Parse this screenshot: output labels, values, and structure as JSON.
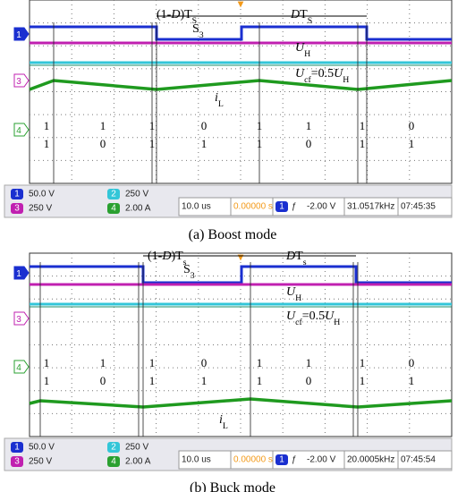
{
  "panels": [
    {
      "caption": "(a) Boost mode",
      "annotations": {
        "period_off": [
          "(1-",
          "D",
          ")T",
          "S"
        ],
        "switch": [
          "S",
          "3"
        ],
        "period_on": [
          "D",
          "T",
          "S"
        ],
        "voltage_high": [
          "U",
          "H"
        ],
        "capacitor_voltage": [
          "U",
          "cf",
          "=0.5",
          "U",
          "H"
        ],
        "inductor_current": [
          "i",
          "L"
        ]
      },
      "channel_markers": [
        "1",
        "3",
        "4"
      ],
      "digits_row1": [
        "1",
        "1",
        "1",
        "0",
        "1",
        "1",
        "1",
        "0"
      ],
      "digits_row2": [
        "1",
        "0",
        "1",
        "1",
        "1",
        "0",
        "1",
        "1"
      ],
      "status": {
        "channels": [
          {
            "ch": "1",
            "value": "50.0 V"
          },
          {
            "ch": "2",
            "value": "250 V"
          },
          {
            "ch": "3",
            "value": "250 V"
          },
          {
            "ch": "4",
            "value": "2.00 A"
          }
        ],
        "timebase": "10.0 us",
        "delay": "0.00000 s",
        "trigger_channel": "1",
        "trigger": "-2.00 V",
        "frequency": "31.0517kHz",
        "clock": "07:45:35"
      }
    },
    {
      "caption": "(b) Buck mode",
      "annotations": {
        "period_off": [
          "(1-",
          "D",
          ")T",
          "s"
        ],
        "switch": [
          "S",
          "3"
        ],
        "period_on": [
          "D",
          "T",
          "s"
        ],
        "voltage_high": [
          "U",
          "H"
        ],
        "capacitor_voltage": [
          "U",
          "cf",
          "=0.5",
          "U",
          "H"
        ],
        "inductor_current": [
          "i",
          "L"
        ]
      },
      "channel_markers": [
        "1",
        "3",
        "4"
      ],
      "digits_row1": [
        "1",
        "1",
        "1",
        "0",
        "1",
        "1",
        "1",
        "0"
      ],
      "digits_row2": [
        "1",
        "0",
        "1",
        "1",
        "1",
        "0",
        "1",
        "1"
      ],
      "status": {
        "channels": [
          {
            "ch": "1",
            "value": "50.0 V"
          },
          {
            "ch": "2",
            "value": "250 V"
          },
          {
            "ch": "3",
            "value": "250 V"
          },
          {
            "ch": "4",
            "value": "2.00 A"
          }
        ],
        "timebase": "10.0 us",
        "delay": "0.00000 s",
        "trigger_channel": "1",
        "trigger": "-2.00 V",
        "frequency": "20.0005kHz",
        "clock": "07:45:54"
      }
    }
  ]
}
